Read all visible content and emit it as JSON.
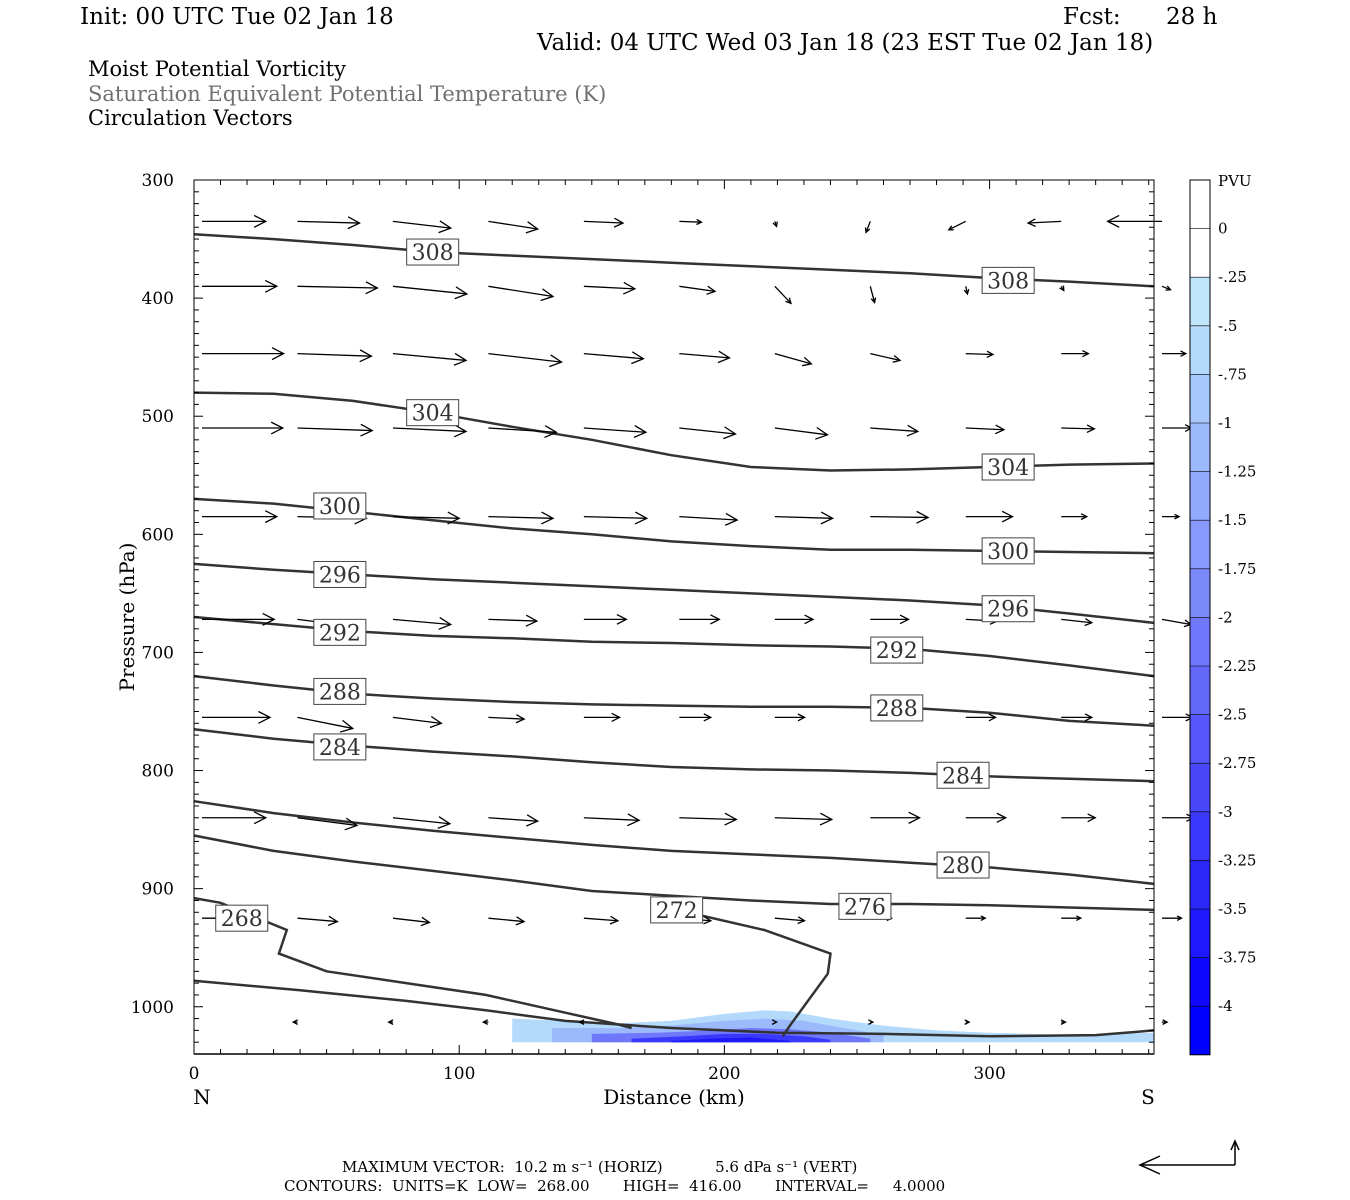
{
  "header": {
    "init": "Init: 00 UTC Tue 02 Jan 18",
    "fcst_label": "Fcst:",
    "fcst_value": "28 h",
    "valid": "Valid: 04 UTC Wed 03 Jan 18 (23 EST Tue 02 Jan 18)",
    "line1": "Moist Potential Vorticity",
    "line2": "Saturation Equivalent Potential Temperature (K)",
    "line3": "Circulation Vectors"
  },
  "colors": {
    "line1": "#000000",
    "line2": "#707070",
    "line3": "#000000",
    "contour": "#333333"
  },
  "chart_data": {
    "type": "line",
    "title": "",
    "xlabel": "Distance (km)",
    "ylabel": "Pressure (hPa)",
    "xlim": [
      0,
      362
    ],
    "ylim": [
      300,
      1040
    ],
    "y_inverted": true,
    "x_ticks": [
      "0",
      "100",
      "200",
      "300"
    ],
    "y_ticks": [
      "300",
      "400",
      "500",
      "600",
      "700",
      "800",
      "900",
      "1000"
    ],
    "x_left_label": "N",
    "x_right_label": "S",
    "colorbar": {
      "unit": "PVU",
      "labels": [
        "0",
        "-.25",
        "-.5",
        "-.75",
        "-1",
        "-1.25",
        "-1.5",
        "-1.75",
        "-2",
        "-2.25",
        "-2.5",
        "-2.75",
        "-3",
        "-3.25",
        "-3.5",
        "-3.75",
        "-4"
      ],
      "colors": [
        "#ffffff",
        "#ffffff",
        "#bfe6fa",
        "#b3d9fb",
        "#a6c8fb",
        "#9cb9fc",
        "#91aafb",
        "#8799fb",
        "#7b89fa",
        "#6f78fa",
        "#6268fa",
        "#5557fa",
        "#4848fa",
        "#3a38fa",
        "#2c28fa",
        "#1e18fb",
        "#1008fc",
        "#0000ff"
      ]
    },
    "contours": [
      {
        "label": "308",
        "x": [
          0,
          30,
          60,
          90,
          120,
          150,
          180,
          210,
          240,
          270,
          300,
          330,
          362
        ],
        "y": [
          346,
          350,
          355,
          361,
          364,
          367,
          370,
          373,
          376,
          379,
          383,
          386,
          390
        ],
        "label_pos": [
          [
            90,
            361
          ],
          [
            307,
            385
          ]
        ]
      },
      {
        "label": "304",
        "x": [
          0,
          30,
          60,
          90,
          120,
          150,
          180,
          210,
          240,
          270,
          300,
          330,
          362
        ],
        "y": [
          480,
          481,
          487,
          497,
          509,
          520,
          533,
          543,
          546,
          545,
          543,
          541,
          540
        ],
        "label_pos": [
          [
            90,
            497
          ],
          [
            307,
            543
          ]
        ]
      },
      {
        "label": "300",
        "x": [
          0,
          30,
          60,
          90,
          120,
          150,
          180,
          210,
          240,
          270,
          300,
          330,
          362
        ],
        "y": [
          570,
          574,
          581,
          588,
          595,
          600,
          606,
          610,
          613,
          613,
          614,
          615,
          616
        ],
        "label_pos": [
          [
            55,
            576
          ],
          [
            307,
            614
          ]
        ]
      },
      {
        "label": "296",
        "x": [
          0,
          30,
          60,
          90,
          120,
          150,
          180,
          210,
          240,
          270,
          300,
          330,
          362
        ],
        "y": [
          625,
          630,
          634,
          638,
          641,
          644,
          647,
          650,
          653,
          656,
          660,
          667,
          675
        ],
        "label_pos": [
          [
            55,
            634
          ],
          [
            307,
            663
          ]
        ]
      },
      {
        "label": "292",
        "x": [
          0,
          30,
          60,
          90,
          120,
          150,
          180,
          210,
          240,
          270,
          300,
          330,
          362
        ],
        "y": [
          670,
          676,
          682,
          686,
          688,
          691,
          692,
          694,
          695,
          697,
          703,
          711,
          720
        ],
        "label_pos": [
          [
            55,
            683
          ],
          [
            265,
            698
          ]
        ]
      },
      {
        "label": "288",
        "x": [
          0,
          30,
          60,
          90,
          120,
          150,
          180,
          210,
          240,
          270,
          300,
          330,
          362
        ],
        "y": [
          720,
          728,
          735,
          739,
          742,
          744,
          745,
          746,
          746,
          747,
          751,
          758,
          762
        ],
        "label_pos": [
          [
            55,
            733
          ],
          [
            265,
            747
          ]
        ]
      },
      {
        "label": "284",
        "x": [
          0,
          30,
          60,
          90,
          120,
          150,
          180,
          210,
          240,
          270,
          300,
          330,
          362
        ],
        "y": [
          765,
          773,
          779,
          784,
          788,
          793,
          797,
          799,
          800,
          802,
          805,
          807,
          809
        ],
        "label_pos": [
          [
            55,
            780
          ],
          [
            290,
            804
          ]
        ]
      },
      {
        "label": "280",
        "x": [
          0,
          30,
          60,
          90,
          120,
          150,
          180,
          210,
          240,
          270,
          300,
          330,
          362
        ],
        "y": [
          826,
          836,
          844,
          851,
          857,
          863,
          868,
          871,
          874,
          878,
          882,
          888,
          896
        ],
        "label_pos": [
          [
            290,
            880
          ]
        ]
      },
      {
        "label": "276",
        "x": [
          0,
          30,
          60,
          90,
          120,
          150,
          180,
          210,
          240,
          270,
          300,
          330,
          362
        ],
        "y": [
          855,
          868,
          877,
          885,
          893,
          902,
          906,
          910,
          913,
          913,
          914,
          916,
          918
        ],
        "label_pos": [
          [
            253,
            915
          ]
        ]
      },
      {
        "label": "272",
        "x": [
          0,
          10,
          35,
          32,
          50,
          80,
          110,
          140,
          160,
          165
        ],
        "y": [
          908,
          912,
          935,
          955,
          970,
          980,
          990,
          1005,
          1015,
          1018
        ],
        "label_pos": [
          [
            182,
            918
          ]
        ]
      },
      {
        "label": "272",
        "x": [
          182,
          215,
          240,
          239,
          225,
          222
        ],
        "y": [
          918,
          935,
          955,
          972,
          1015,
          1025
        ],
        "label_pos": []
      },
      {
        "label": "268",
        "x": [
          0,
          40,
          80,
          110,
          140,
          180,
          220,
          260,
          300,
          340,
          362
        ],
        "y": [
          978,
          986,
          995,
          1003,
          1012,
          1018,
          1022,
          1023,
          1025,
          1024,
          1020
        ],
        "label_pos": [
          [
            18,
            925
          ]
        ]
      }
    ],
    "vectors_rows": [
      {
        "p": 335,
        "x": [
          0,
          36,
          72,
          108,
          144,
          180,
          216,
          252,
          288,
          324,
          362
        ],
        "u": [
          7.5,
          7.3,
          6.8,
          5.8,
          4.6,
          2.6,
          0.2,
          -0.5,
          -2.0,
          -3.9,
          -6.4
        ],
        "w": [
          0,
          0.2,
          0.8,
          0.9,
          0.2,
          0.1,
          0.6,
          1.3,
          1.0,
          0.2,
          0
        ]
      },
      {
        "p": 390,
        "x": [
          0,
          36,
          72,
          108,
          144,
          180,
          216,
          252,
          288,
          324,
          362
        ],
        "u": [
          8.8,
          9.4,
          8.7,
          7.6,
          6.0,
          4.2,
          1.9,
          0.5,
          0.2,
          0.3,
          1.0
        ],
        "w": [
          0,
          0.2,
          0.9,
          1.2,
          0.3,
          0.6,
          2.0,
          1.9,
          0.9,
          0.5,
          0.4
        ]
      },
      {
        "p": 447,
        "x": [
          0,
          36,
          72,
          108,
          144,
          180,
          216,
          252,
          288,
          324,
          362
        ],
        "u": [
          9.6,
          8.7,
          8.6,
          8.6,
          7.0,
          5.9,
          4.3,
          3.5,
          3.2,
          3.2,
          2.8
        ],
        "w": [
          0,
          0.3,
          0.8,
          1.0,
          0.6,
          0.5,
          1.2,
          0.8,
          0.1,
          0,
          0
        ]
      },
      {
        "p": 510,
        "x": [
          0,
          36,
          72,
          108,
          144,
          180,
          216,
          252,
          288,
          324,
          362
        ],
        "u": [
          9.5,
          8.8,
          8.6,
          8.0,
          7.3,
          6.6,
          6.2,
          5.6,
          4.5,
          3.9,
          3.5
        ],
        "w": [
          0,
          0.3,
          0.4,
          0.5,
          0.5,
          0.7,
          0.8,
          0.4,
          0.2,
          0.1,
          0
        ]
      },
      {
        "p": 585,
        "x": [
          0,
          36,
          72,
          108,
          144,
          180,
          216,
          252,
          288,
          324,
          362
        ],
        "u": [
          8.8,
          8.1,
          7.8,
          7.6,
          7.4,
          6.8,
          6.8,
          6.8,
          5.5,
          3.0,
          2.0
        ],
        "w": [
          0,
          0.2,
          0.2,
          0.2,
          0.2,
          0.4,
          0.2,
          0.1,
          0,
          0,
          0
        ]
      },
      {
        "p": 672,
        "x": [
          0,
          36,
          72,
          108,
          144,
          180,
          216,
          252,
          288,
          324,
          362
        ],
        "u": [
          8.5,
          7.2,
          6.8,
          5.7,
          5.0,
          4.7,
          4.5,
          4.5,
          3.7,
          3.6,
          3.4
        ],
        "w": [
          0,
          0.9,
          0.6,
          0.2,
          0,
          0,
          0,
          0,
          0.2,
          0.4,
          0.6
        ]
      },
      {
        "p": 755,
        "x": [
          0,
          36,
          72,
          108,
          144,
          180,
          216,
          252,
          288,
          324,
          362
        ],
        "u": [
          8.0,
          6.5,
          5.7,
          4.2,
          4.2,
          3.7,
          3.5,
          3.3,
          3.5,
          3.6,
          3.6
        ],
        "w": [
          0,
          1.3,
          0.7,
          0.2,
          0,
          0,
          0,
          0,
          0,
          0,
          0
        ]
      },
      {
        "p": 840,
        "x": [
          0,
          36,
          72,
          108,
          144,
          180,
          216,
          252,
          288,
          324,
          362
        ],
        "u": [
          7.5,
          7.0,
          6.7,
          5.8,
          6.5,
          6.7,
          6.7,
          5.8,
          4.7,
          4.0,
          3.7
        ],
        "w": [
          0,
          0.9,
          0.7,
          0.4,
          0.3,
          0.2,
          0.2,
          0,
          0,
          0,
          0
        ]
      },
      {
        "p": 925,
        "x": [
          0,
          36,
          72,
          108,
          144,
          180,
          216,
          252,
          288,
          324,
          362
        ],
        "u": [
          5.0,
          4.7,
          4.3,
          4.2,
          4.0,
          3.7,
          3.5,
          2.5,
          2.3,
          2.3,
          2.3
        ],
        "w": [
          0,
          0.4,
          0.5,
          0.4,
          0.3,
          0.3,
          0.3,
          0,
          0,
          0,
          0
        ]
      },
      {
        "p": 1013,
        "x": [
          0,
          36,
          72,
          108,
          144,
          180,
          216,
          252,
          288,
          324,
          362
        ],
        "u": [
          0,
          -0.5,
          -0.5,
          -0.6,
          -0.5,
          0,
          0.2,
          0.3,
          0.4,
          0.5,
          0.6
        ],
        "w": [
          0,
          0,
          0,
          0,
          0,
          0,
          0,
          0,
          0,
          0,
          0
        ]
      }
    ],
    "shading": [
      {
        "level": "-.5",
        "x": [
          120,
          140,
          160,
          180,
          200,
          215,
          225,
          240,
          260,
          280,
          300,
          330,
          362
        ],
        "top": [
          1010,
          1012,
          1014,
          1012,
          1006,
          1003,
          1004,
          1010,
          1016,
          1020,
          1022,
          1024,
          1022
        ],
        "bottom": 1030
      },
      {
        "level": "-1",
        "x": [
          135,
          160,
          180,
          200,
          215,
          230,
          245,
          260
        ],
        "top": [
          1018,
          1018,
          1016,
          1012,
          1010,
          1012,
          1018,
          1024
        ],
        "bottom": 1030
      },
      {
        "level": "-2",
        "x": [
          150,
          175,
          195,
          210,
          225,
          240,
          255
        ],
        "top": [
          1023,
          1022,
          1020,
          1018,
          1019,
          1022,
          1027
        ],
        "bottom": 1030
      },
      {
        "level": "-3",
        "x": [
          165,
          185,
          200,
          215,
          230,
          240
        ],
        "top": [
          1027,
          1025,
          1023,
          1023,
          1025,
          1028
        ],
        "bottom": 1030
      },
      {
        "level": "-3.5",
        "x": [
          180,
          195,
          210,
          225
        ],
        "top": [
          1029,
          1027,
          1026,
          1029
        ],
        "bottom": 1030
      }
    ],
    "surface": {
      "x": [
        0,
        40,
        80,
        120,
        160,
        200,
        240,
        280,
        320,
        362
      ],
      "y": [
        1040,
        1040,
        1040,
        1040,
        1040,
        1040,
        1040,
        1040,
        1040,
        1040
      ]
    }
  },
  "footer": {
    "line1": "MAXIMUM VECTOR:  10.2 m s⁻¹ (HORIZ)           5.6 dPa s⁻¹ (VERT)",
    "line2": "CONTOURS:  UNITS=K  LOW=  268.00       HIGH=  416.00       INTERVAL=     4.0000"
  }
}
